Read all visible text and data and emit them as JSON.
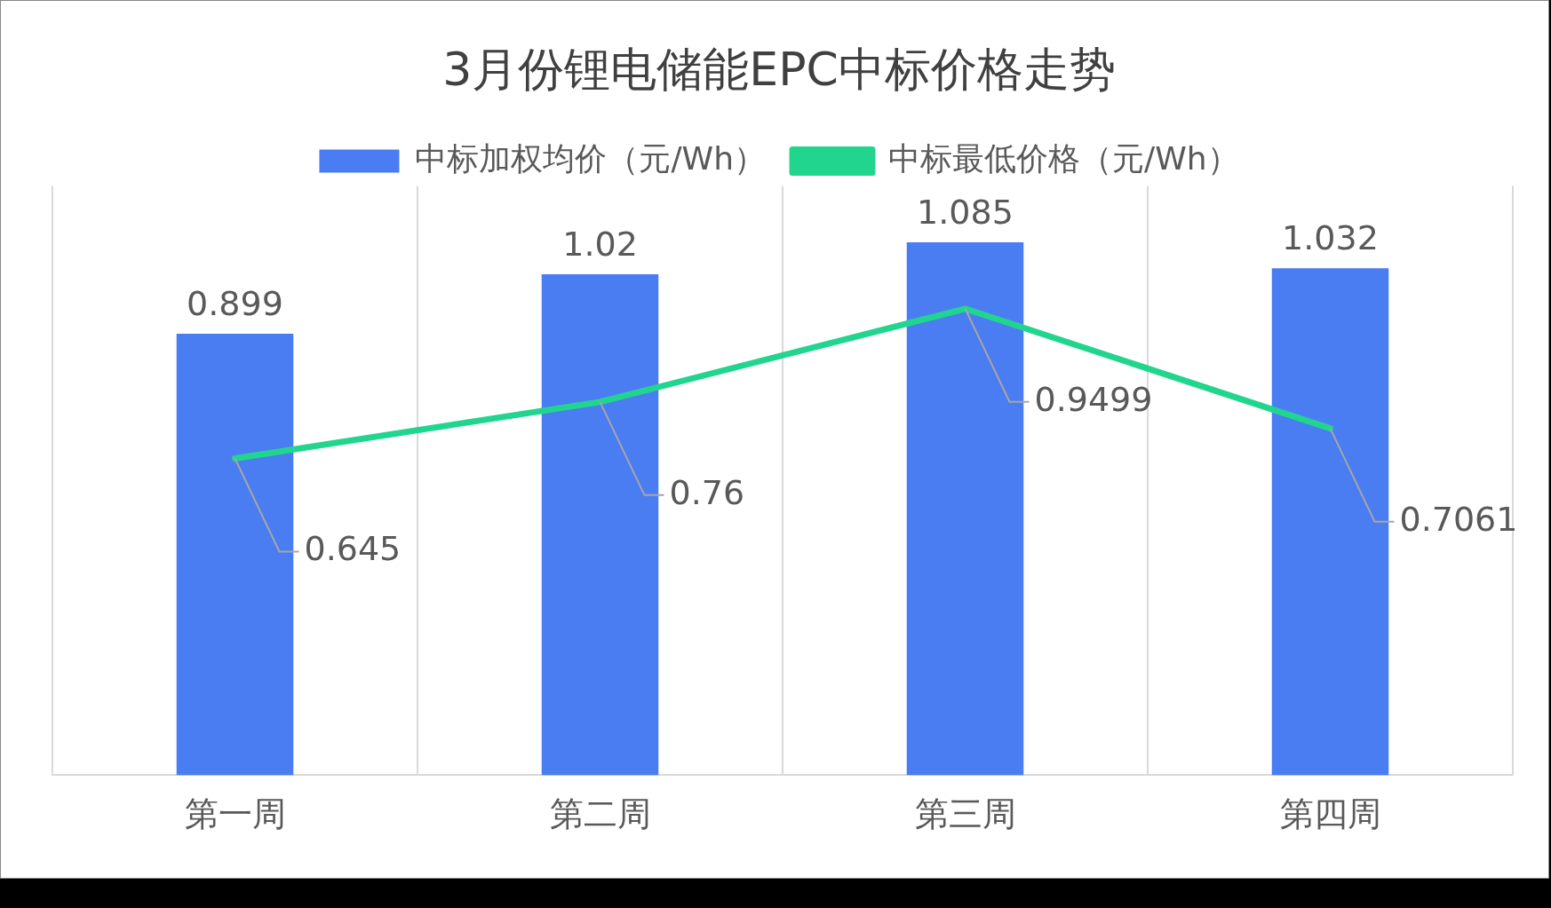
{
  "chart_data": {
    "type": "bar",
    "title": "3月份锂电储能EPC中标价格走势",
    "categories": [
      "第一周",
      "第二周",
      "第三周",
      "第四周"
    ],
    "series": [
      {
        "name": "中标加权均价（元/Wh）",
        "color": "#4a7cf2",
        "values": [
          0.899,
          1.02,
          1.085,
          1.032
        ]
      },
      {
        "name": "中标最低价格（元/Wh）",
        "type": "line",
        "color": "#22d58f",
        "values": [
          0.645,
          0.76,
          0.9499,
          0.7061
        ]
      }
    ],
    "relative": false,
    "data_labels": true,
    "grid": "x",
    "legend": "top",
    "marker": "none"
  }
}
